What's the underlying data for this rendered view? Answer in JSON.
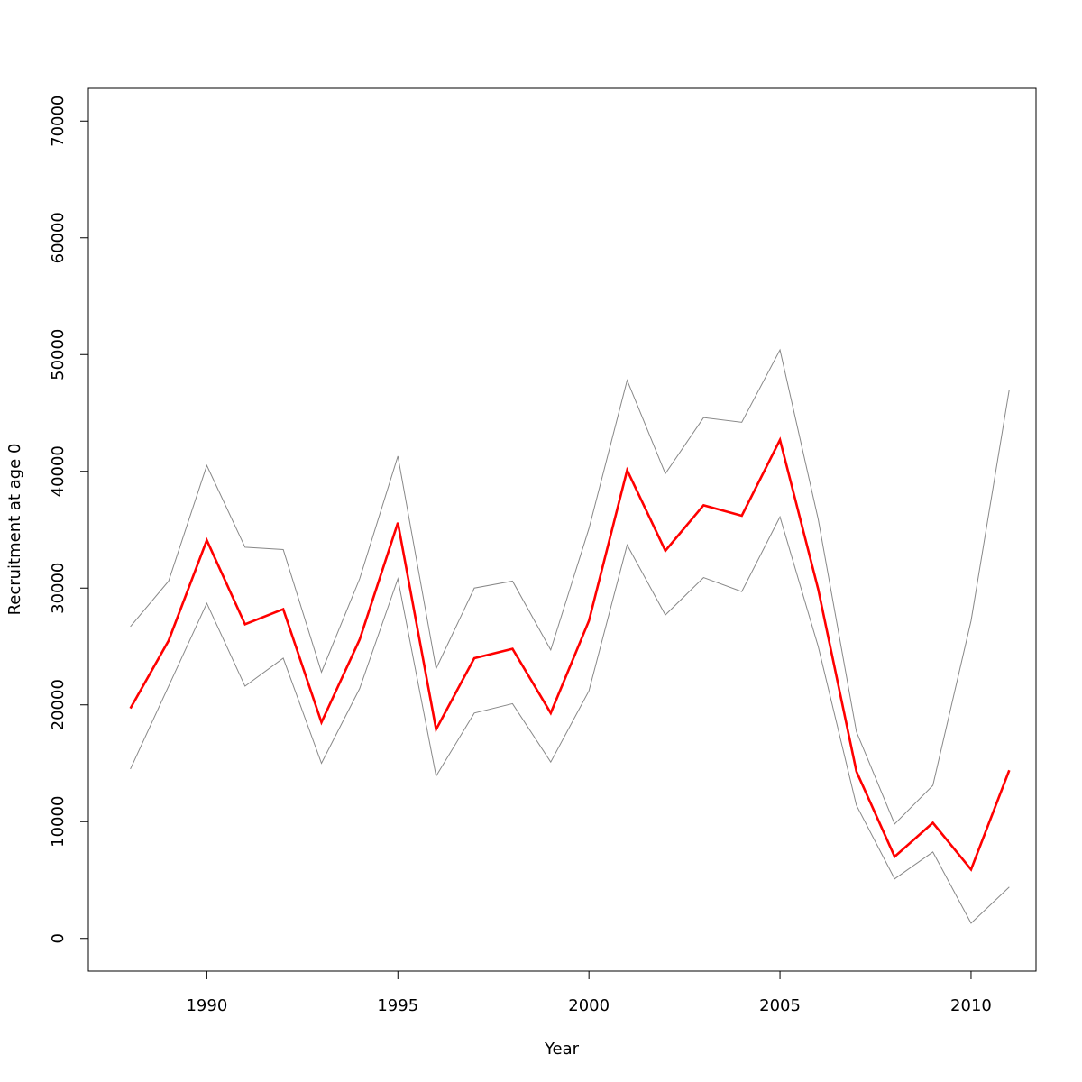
{
  "chart_data": {
    "type": "line",
    "title": "",
    "xlabel": "Year",
    "ylabel": "Recruitment at age 0",
    "x": [
      1988,
      1989,
      1990,
      1991,
      1992,
      1993,
      1994,
      1995,
      1996,
      1997,
      1998,
      1999,
      2000,
      2001,
      2002,
      2003,
      2004,
      2005,
      2006,
      2007,
      2008,
      2009,
      2010,
      2011
    ],
    "xlim": [
      1986.9,
      2011.7
    ],
    "ylim": [
      -2800,
      72800
    ],
    "x_ticks": [
      1990,
      1995,
      2000,
      2005,
      2010
    ],
    "x_tick_labels": [
      "1990",
      "1995",
      "2000",
      "2005",
      "2010"
    ],
    "y_ticks": [
      0,
      10000,
      20000,
      30000,
      40000,
      50000,
      60000,
      70000
    ],
    "y_tick_labels": [
      "0",
      "10000",
      "20000",
      "30000",
      "40000",
      "50000",
      "60000",
      "70000"
    ],
    "grid": false,
    "legend": "none",
    "series": [
      {
        "role": "upper-bound",
        "color": "#888888",
        "values": [
          26700,
          30600,
          40500,
          33500,
          33300,
          22800,
          30800,
          41300,
          23100,
          30000,
          30600,
          24700,
          35100,
          47800,
          39800,
          44600,
          44200,
          50400,
          35900,
          17700,
          9800,
          13100,
          27200,
          47000
        ]
      },
      {
        "role": "estimate",
        "color": "#ff0000",
        "values": [
          19700,
          25500,
          34100,
          26900,
          28200,
          18500,
          25600,
          35600,
          17900,
          24000,
          24800,
          19300,
          27200,
          40100,
          33200,
          37100,
          36200,
          42700,
          29900,
          14300,
          7000,
          9900,
          5900,
          14400
        ]
      },
      {
        "role": "lower-bound",
        "color": "#888888",
        "values": [
          14500,
          21600,
          28700,
          21600,
          24000,
          15000,
          21400,
          30800,
          13900,
          19300,
          20100,
          15100,
          21200,
          33700,
          27700,
          30900,
          29700,
          36100,
          25000,
          11400,
          5100,
          7400,
          1300,
          4400
        ]
      }
    ]
  }
}
